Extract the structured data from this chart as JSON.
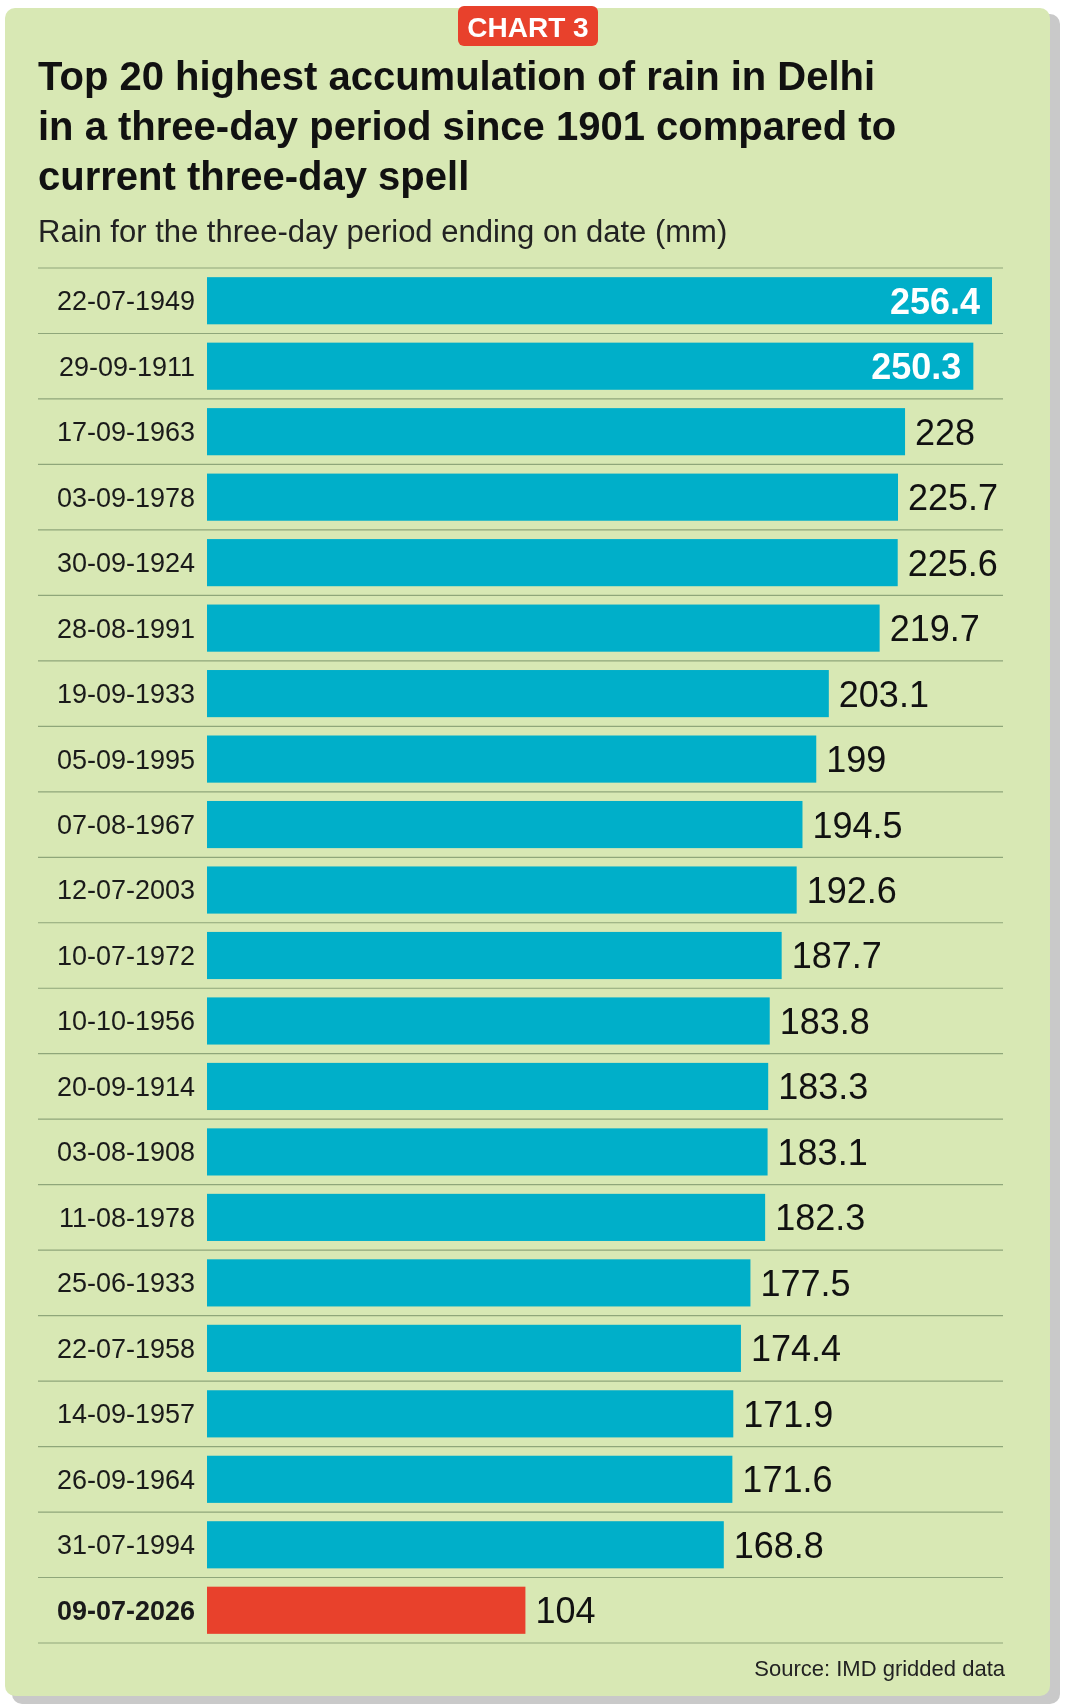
{
  "chart_data": {
    "type": "bar",
    "orientation": "horizontal",
    "title": "Top 20 highest accumulation of rain in Delhi in a three-day period since 1901 compared to current three-day spell",
    "subtitle": "Rain for the three-day period ending on date (mm)",
    "categories": [
      "22-07-1949",
      "29-09-1911",
      "17-09-1963",
      "03-09-1978",
      "30-09-1924",
      "28-08-1991",
      "19-09-1933",
      "05-09-1995",
      "07-08-1967",
      "12-07-2003",
      "10-07-1972",
      "10-10-1956",
      "20-09-1914",
      "03-08-1908",
      "11-08-1978",
      "25-06-1933",
      "22-07-1958",
      "14-09-1957",
      "26-09-1964",
      "31-07-1994",
      "09-07-2026"
    ],
    "values": [
      256.4,
      250.3,
      228,
      225.7,
      225.6,
      219.7,
      203.1,
      199,
      194.5,
      192.6,
      187.7,
      183.8,
      183.3,
      183.1,
      182.3,
      177.5,
      174.4,
      171.9,
      171.6,
      168.8,
      104
    ],
    "colors": [
      "#00afc9",
      "#00afc9",
      "#00afc9",
      "#00afc9",
      "#00afc9",
      "#00afc9",
      "#00afc9",
      "#00afc9",
      "#00afc9",
      "#00afc9",
      "#00afc9",
      "#00afc9",
      "#00afc9",
      "#00afc9",
      "#00afc9",
      "#00afc9",
      "#00afc9",
      "#00afc9",
      "#00afc9",
      "#00afc9",
      "#e8412c"
    ],
    "data_labels": true,
    "annotations": [
      "CHART 3",
      "Source: IMD gridded data"
    ]
  }
}
